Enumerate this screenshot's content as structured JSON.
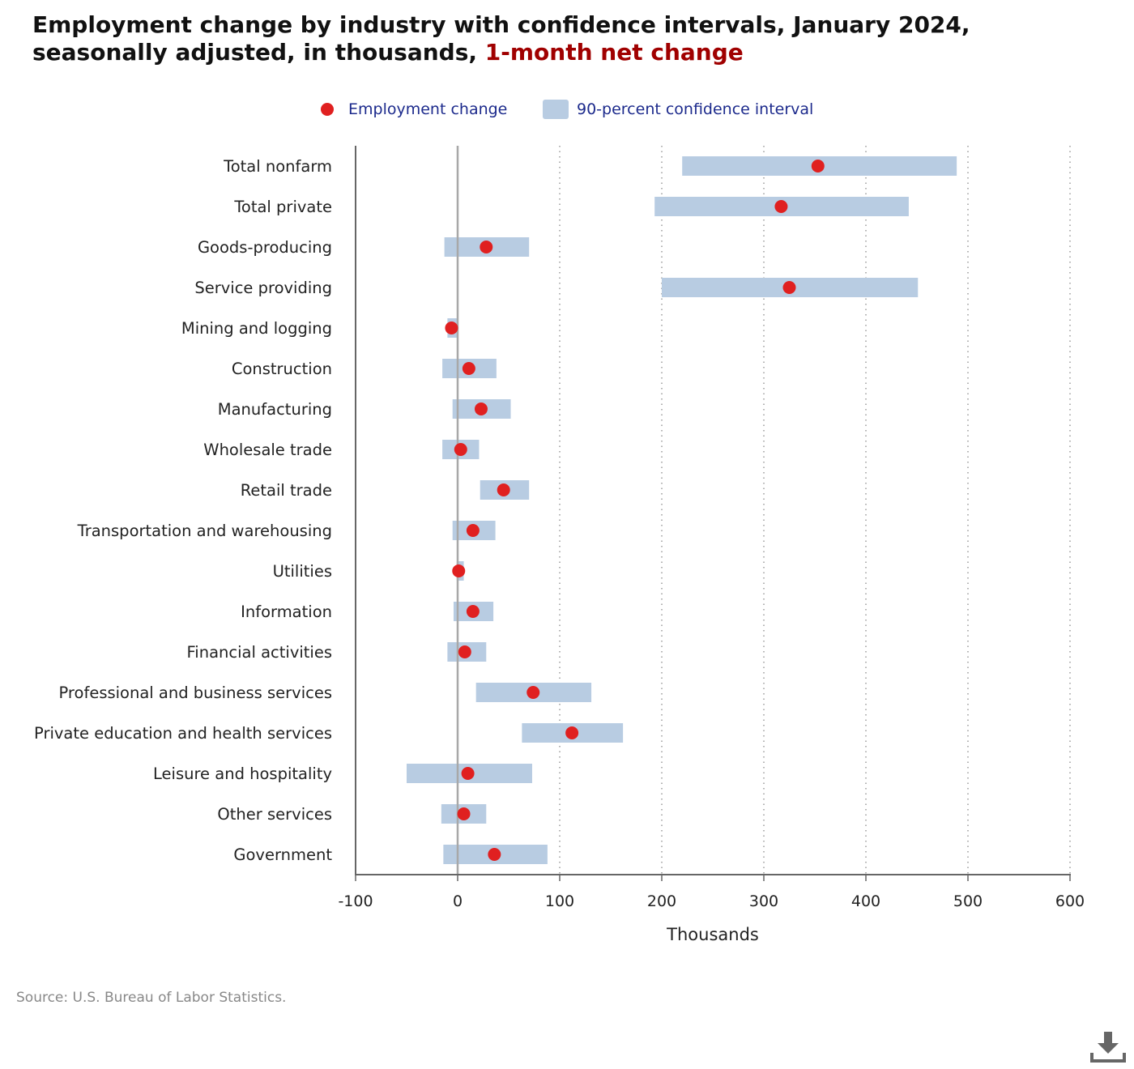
{
  "title": {
    "main": "Employment change by industry with confidence intervals, January 2024, seasonally adjusted, in thousands,",
    "highlight": "1-month net change"
  },
  "legend": {
    "point_label": "Employment change",
    "interval_label": "90-percent confidence interval"
  },
  "source": "Source: U.S. Bureau of Labor Statistics.",
  "download_icon": "download-icon",
  "colors": {
    "point": "#e02020",
    "interval": "#b8cce2",
    "title_highlight": "#a00000",
    "legend_text": "#1c2a8c"
  },
  "chart_data": {
    "type": "scatter",
    "xlabel": "Thousands",
    "xlim": [
      -100,
      600
    ],
    "xticks": [
      -100,
      0,
      100,
      200,
      300,
      400,
      500,
      600
    ],
    "categories": [
      "Total nonfarm",
      "Total private",
      "Goods-producing",
      "Service providing",
      "Mining and logging",
      "Construction",
      "Manufacturing",
      "Wholesale trade",
      "Retail trade",
      "Transportation and warehousing",
      "Utilities",
      "Information",
      "Financial activities",
      "Professional and business services",
      "Private education and health services",
      "Leisure and hospitality",
      "Other services",
      "Government"
    ],
    "series": [
      {
        "name": "Employment change",
        "values": [
          353,
          317,
          28,
          325,
          -6,
          11,
          23,
          3,
          45,
          15,
          1,
          15,
          7,
          74,
          112,
          10,
          6,
          36
        ]
      },
      {
        "name": "90-percent confidence interval",
        "low": [
          220,
          193,
          -13,
          200,
          -10,
          -15,
          -5,
          -15,
          22,
          -5,
          -1,
          -4,
          -10,
          18,
          63,
          -50,
          -16,
          -14
        ],
        "high": [
          489,
          442,
          70,
          451,
          0,
          38,
          52,
          21,
          70,
          37,
          6,
          35,
          28,
          131,
          162,
          73,
          28,
          88
        ]
      }
    ],
    "grid": "vertical dotted",
    "legend_position": "top-center"
  }
}
